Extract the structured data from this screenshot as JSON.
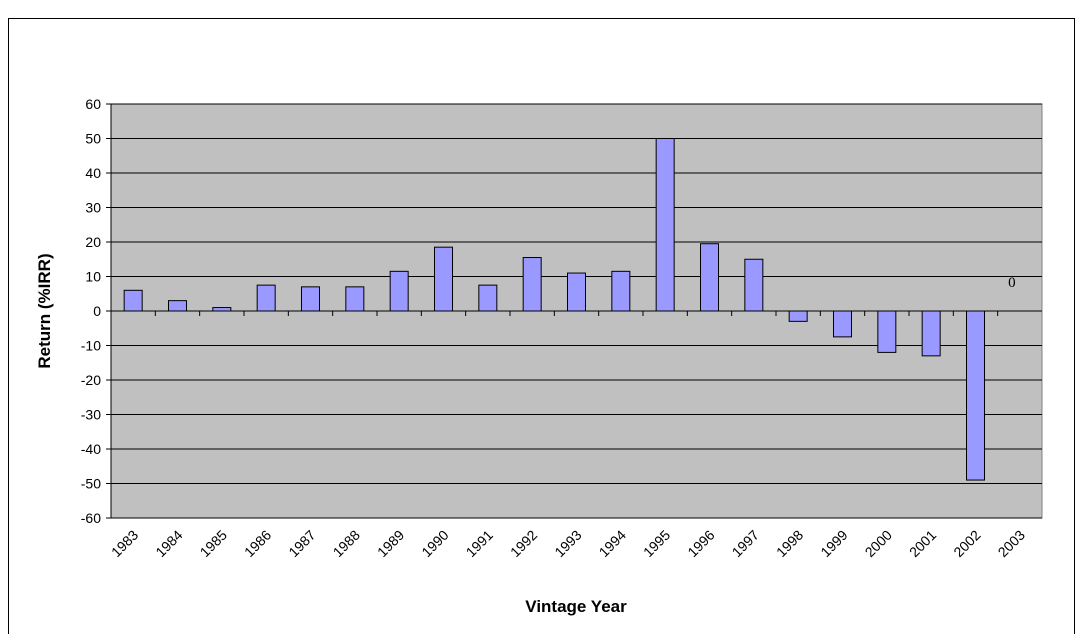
{
  "chart_data": {
    "type": "bar",
    "x_label": "Vintage Year",
    "y_label": "Return (%IRR)",
    "categories": [
      "1983",
      "1984",
      "1985",
      "1986",
      "1987",
      "1988",
      "1989",
      "1990",
      "1991",
      "1992",
      "1993",
      "1994",
      "1995",
      "1996",
      "1997",
      "1998",
      "1999",
      "2000",
      "2001",
      "2002",
      "2003"
    ],
    "values": [
      6,
      3,
      1,
      7.5,
      7,
      7,
      11.5,
      18.5,
      7.5,
      15.5,
      11,
      11.5,
      50,
      19.5,
      15,
      -3,
      -7.5,
      -12,
      -13,
      -49,
      0
    ],
    "color": "#9999ff",
    "ylim": [
      -60,
      60
    ],
    "yticks": [
      -60,
      -50,
      -40,
      -30,
      -20,
      -10,
      0,
      10,
      20,
      30,
      40,
      50,
      60
    ],
    "grid": true
  }
}
